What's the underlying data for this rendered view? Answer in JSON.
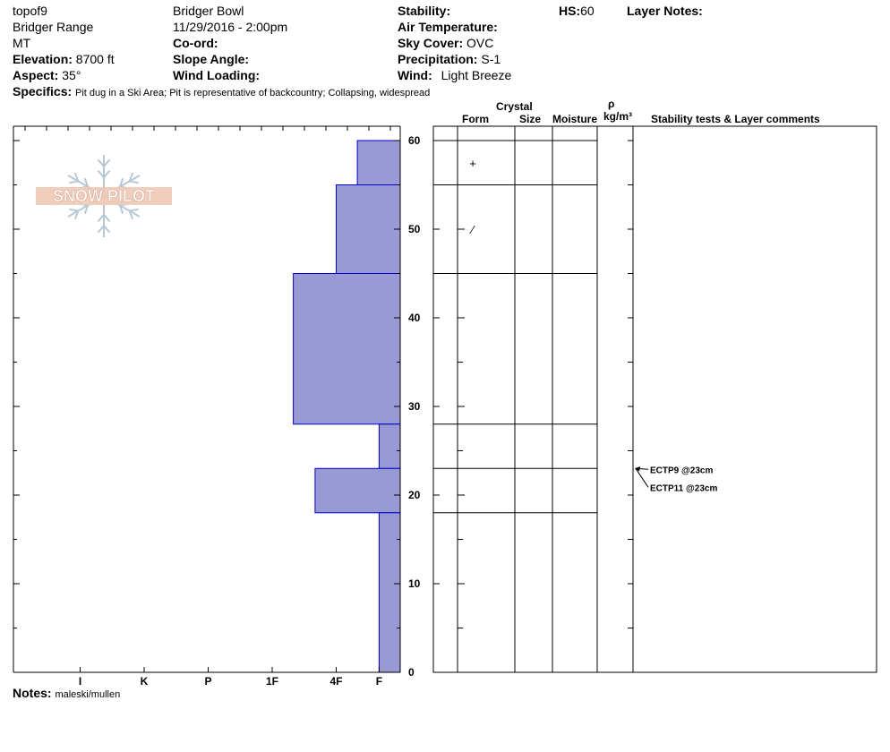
{
  "header": {
    "pit_name": "topof9",
    "range": "Bridger Range",
    "state": "MT",
    "elevation_label": "Elevation:",
    "elevation": "8700 ft",
    "aspect_label": "Aspect:",
    "aspect": "35°",
    "location": "Bridger Bowl",
    "datetime": "11/29/2016 - 2:00pm",
    "coord_label": "Co-ord:",
    "slope_label": "Slope Angle:",
    "wind_loading_label": "Wind Loading:",
    "stability_label": "Stability:",
    "air_temp_label": "Air Temperature:",
    "sky_label": "Sky Cover:",
    "sky": "OVC",
    "precip_label": "Precipitation:",
    "precip": "S-1",
    "wind_label": "Wind:",
    "wind": "Light Breeze",
    "hs_label": "HS:",
    "hs": "60",
    "layer_notes_label": "Layer Notes:",
    "specifics_label": "Specifics:",
    "specifics": "Pit dug in a Ski Area;  Pit is representative of backcountry;  Collapsing, widespread"
  },
  "logo": {
    "text": "SNOW PILOT"
  },
  "columns": {
    "crystal": "Crystal",
    "form": "Form",
    "size": "Size",
    "moisture": "Moisture",
    "rho": "ρ",
    "density_unit": "kg/m³",
    "comments": "Stability tests & Layer comments"
  },
  "notes": {
    "label": "Notes:",
    "text": "maleski/mullen"
  },
  "chart_data": {
    "type": "bar",
    "orientation": "horizontal",
    "title": "",
    "ylabel": "",
    "ylim": [
      0,
      60
    ],
    "y_ticks": [
      0,
      10,
      20,
      30,
      40,
      50,
      60
    ],
    "hardness_scale": [
      "I",
      "K",
      "P",
      "1F",
      "4F",
      "F"
    ],
    "hardness_values": {
      "F": 0.33,
      "4F": 1.0,
      "1F": 2.0,
      "P": 3.0,
      "K": 4.0,
      "I": 5.0
    },
    "fill_color": "#9999d6",
    "edge_color": "#0000cc",
    "layers": [
      {
        "top": 60,
        "bottom": 55,
        "hardness": 0.67
      },
      {
        "top": 55,
        "bottom": 45,
        "hardness": 1.0
      },
      {
        "top": 45,
        "bottom": 28,
        "hardness": 1.67
      },
      {
        "top": 28,
        "bottom": 23,
        "hardness": 0.33
      },
      {
        "top": 23,
        "bottom": 18,
        "hardness": 1.33
      },
      {
        "top": 18,
        "bottom": 0,
        "hardness": 0.33
      }
    ],
    "layer_boundaries": [
      60,
      55,
      45,
      28,
      23,
      18
    ],
    "crystal_forms": [
      {
        "depth": 57.5,
        "symbol": "+"
      },
      {
        "depth": 50,
        "symbol": "⁄"
      }
    ],
    "stability_tests": [
      {
        "depth": 23,
        "label": "ECTP9 @23cm"
      },
      {
        "depth": 23,
        "label": "ECTP11 @23cm"
      }
    ]
  }
}
